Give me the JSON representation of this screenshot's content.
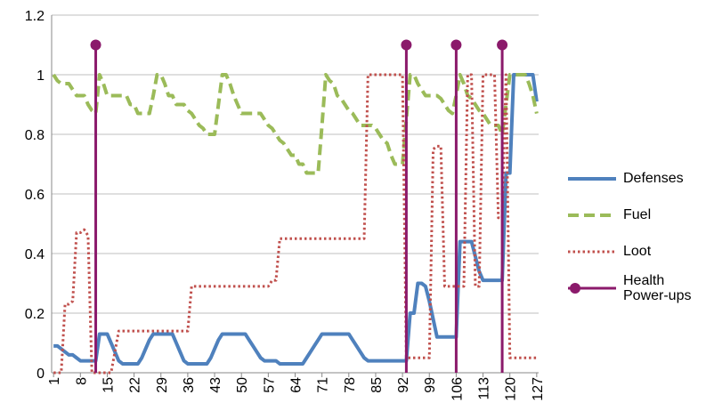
{
  "chart_data": {
    "type": "line",
    "x": [
      1,
      2,
      3,
      4,
      5,
      6,
      7,
      8,
      9,
      10,
      11,
      12,
      13,
      14,
      15,
      16,
      17,
      18,
      19,
      20,
      21,
      22,
      23,
      24,
      25,
      26,
      27,
      28,
      29,
      30,
      31,
      32,
      33,
      34,
      35,
      36,
      37,
      38,
      39,
      40,
      41,
      42,
      43,
      44,
      45,
      46,
      47,
      48,
      49,
      50,
      51,
      52,
      53,
      54,
      55,
      56,
      57,
      58,
      59,
      60,
      61,
      62,
      63,
      64,
      65,
      66,
      67,
      68,
      69,
      70,
      71,
      72,
      73,
      74,
      75,
      76,
      77,
      78,
      79,
      80,
      81,
      82,
      83,
      84,
      85,
      86,
      87,
      88,
      89,
      90,
      91,
      92,
      93,
      94,
      95,
      96,
      97,
      98,
      99,
      100,
      101,
      102,
      103,
      104,
      105,
      106,
      107,
      108,
      109,
      110,
      111,
      112,
      113,
      114,
      115,
      116,
      117,
      118,
      119,
      120,
      121,
      122,
      123,
      124,
      125,
      126,
      127
    ],
    "xlim": [
      0.5,
      127.5
    ],
    "xticks": [
      1,
      8,
      15,
      22,
      29,
      36,
      43,
      50,
      57,
      64,
      71,
      78,
      85,
      92,
      99,
      106,
      113,
      120,
      127
    ],
    "ylim": [
      0,
      1.2
    ],
    "yticks": [
      0,
      0.2,
      0.4,
      0.6,
      0.8,
      1,
      1.2
    ],
    "grid": true,
    "legend": "right",
    "series": [
      {
        "name": "Defenses",
        "color": "#4f81bd",
        "style": "solid",
        "values": [
          0.09,
          0.09,
          0.08,
          0.07,
          0.06,
          0.06,
          0.05,
          0.04,
          0.04,
          0.04,
          0.04,
          0.04,
          0.13,
          0.13,
          0.13,
          0.1,
          0.07,
          0.04,
          0.03,
          0.03,
          0.03,
          0.03,
          0.03,
          0.05,
          0.08,
          0.11,
          0.13,
          0.13,
          0.13,
          0.13,
          0.13,
          0.13,
          0.1,
          0.07,
          0.04,
          0.03,
          0.03,
          0.03,
          0.03,
          0.03,
          0.03,
          0.05,
          0.08,
          0.11,
          0.13,
          0.13,
          0.13,
          0.13,
          0.13,
          0.13,
          0.13,
          0.11,
          0.09,
          0.07,
          0.05,
          0.04,
          0.04,
          0.04,
          0.04,
          0.03,
          0.03,
          0.03,
          0.03,
          0.03,
          0.03,
          0.03,
          0.05,
          0.07,
          0.09,
          0.11,
          0.13,
          0.13,
          0.13,
          0.13,
          0.13,
          0.13,
          0.13,
          0.13,
          0.11,
          0.09,
          0.07,
          0.05,
          0.04,
          0.04,
          0.04,
          0.04,
          0.04,
          0.04,
          0.04,
          0.04,
          0.04,
          0.04,
          0.04,
          0.2,
          0.2,
          0.3,
          0.3,
          0.29,
          0.24,
          0.18,
          0.12,
          0.12,
          0.12,
          0.12,
          0.12,
          0.12,
          0.44,
          0.44,
          0.44,
          0.44,
          0.39,
          0.34,
          0.31,
          0.31,
          0.31,
          0.31,
          0.31,
          0.31,
          0.67,
          0.67,
          1,
          1,
          1,
          1,
          1,
          1,
          0.91
        ]
      },
      {
        "name": "Fuel",
        "color": "#9bbb59",
        "style": "dashed",
        "values": [
          1,
          0.98,
          0.97,
          0.97,
          0.97,
          0.95,
          0.93,
          0.93,
          0.93,
          0.9,
          0.88,
          0.87,
          1,
          0.97,
          0.93,
          0.93,
          0.93,
          0.93,
          0.93,
          0.93,
          0.9,
          0.9,
          0.87,
          0.87,
          0.87,
          0.87,
          0.93,
          1,
          1,
          0.97,
          0.93,
          0.93,
          0.9,
          0.9,
          0.9,
          0.88,
          0.87,
          0.85,
          0.83,
          0.82,
          0.8,
          0.8,
          0.8,
          0.9,
          1,
          1,
          0.97,
          0.93,
          0.9,
          0.87,
          0.87,
          0.87,
          0.87,
          0.87,
          0.87,
          0.85,
          0.83,
          0.82,
          0.8,
          0.78,
          0.77,
          0.75,
          0.73,
          0.73,
          0.7,
          0.7,
          0.67,
          0.67,
          0.67,
          0.67,
          0.83,
          1,
          0.98,
          0.97,
          0.93,
          0.92,
          0.9,
          0.88,
          0.87,
          0.85,
          0.83,
          0.83,
          0.83,
          0.83,
          0.82,
          0.8,
          0.78,
          0.77,
          0.73,
          0.7,
          0.7,
          0.7,
          0.85,
          1,
          1,
          0.97,
          0.95,
          0.93,
          0.93,
          0.93,
          0.93,
          0.92,
          0.9,
          0.88,
          0.87,
          0.93,
          1,
          0.97,
          0.93,
          0.92,
          0.9,
          0.88,
          0.87,
          0.85,
          0.83,
          0.83,
          0.83,
          0.8,
          0.9,
          1,
          1,
          1,
          1,
          1,
          0.97,
          0.93,
          0.87
        ]
      },
      {
        "name": "Loot",
        "color": "#c0504d",
        "style": "dotted",
        "values": [
          0,
          0,
          0,
          0.23,
          0.23,
          0.24,
          0.47,
          0.47,
          0.48,
          0.46,
          0,
          0,
          0,
          0,
          0,
          0,
          0.07,
          0.14,
          0.14,
          0.14,
          0.14,
          0.14,
          0.14,
          0.14,
          0.14,
          0.14,
          0.14,
          0.14,
          0.14,
          0.14,
          0.14,
          0.14,
          0.14,
          0.14,
          0.14,
          0.14,
          0.29,
          0.29,
          0.29,
          0.29,
          0.29,
          0.29,
          0.29,
          0.29,
          0.29,
          0.29,
          0.29,
          0.29,
          0.29,
          0.29,
          0.29,
          0.29,
          0.29,
          0.29,
          0.29,
          0.29,
          0.29,
          0.31,
          0.31,
          0.45,
          0.45,
          0.45,
          0.45,
          0.45,
          0.45,
          0.45,
          0.45,
          0.45,
          0.45,
          0.45,
          0.45,
          0.45,
          0.45,
          0.45,
          0.45,
          0.45,
          0.45,
          0.45,
          0.45,
          0.45,
          0.45,
          0.45,
          1,
          1,
          1,
          1,
          1,
          1,
          1,
          1,
          1,
          1,
          0.05,
          0.05,
          0.05,
          0.05,
          0.05,
          0.05,
          0.05,
          0.75,
          0.76,
          0.76,
          0.29,
          0.29,
          0.29,
          0.29,
          0.29,
          0.29,
          1,
          1,
          0.29,
          0.29,
          1,
          1,
          1,
          1,
          0.52,
          0.52,
          1,
          0.05,
          0.05,
          0.05,
          0.05,
          0.05,
          0.05,
          0.05,
          0.05
        ]
      },
      {
        "name": "Health Power-ups",
        "color": "#8b1a6b",
        "style": "stem",
        "values": [
          null,
          null,
          null,
          null,
          null,
          null,
          null,
          null,
          null,
          null,
          null,
          1.1,
          null,
          null,
          null,
          null,
          null,
          null,
          null,
          null,
          null,
          null,
          null,
          null,
          null,
          null,
          null,
          null,
          null,
          null,
          null,
          null,
          null,
          null,
          null,
          null,
          null,
          null,
          null,
          null,
          null,
          null,
          null,
          null,
          null,
          null,
          null,
          null,
          null,
          null,
          null,
          null,
          null,
          null,
          null,
          null,
          null,
          null,
          null,
          null,
          null,
          null,
          null,
          null,
          null,
          null,
          null,
          null,
          null,
          null,
          null,
          null,
          null,
          null,
          null,
          null,
          null,
          null,
          null,
          null,
          null,
          null,
          null,
          null,
          null,
          null,
          null,
          null,
          null,
          null,
          null,
          null,
          1.1,
          null,
          null,
          null,
          null,
          null,
          null,
          null,
          null,
          null,
          null,
          null,
          null,
          1.1,
          null,
          null,
          null,
          null,
          null,
          null,
          null,
          null,
          null,
          null,
          null,
          1.1,
          null,
          null,
          null,
          null,
          null,
          null,
          null,
          null,
          null
        ]
      }
    ]
  }
}
